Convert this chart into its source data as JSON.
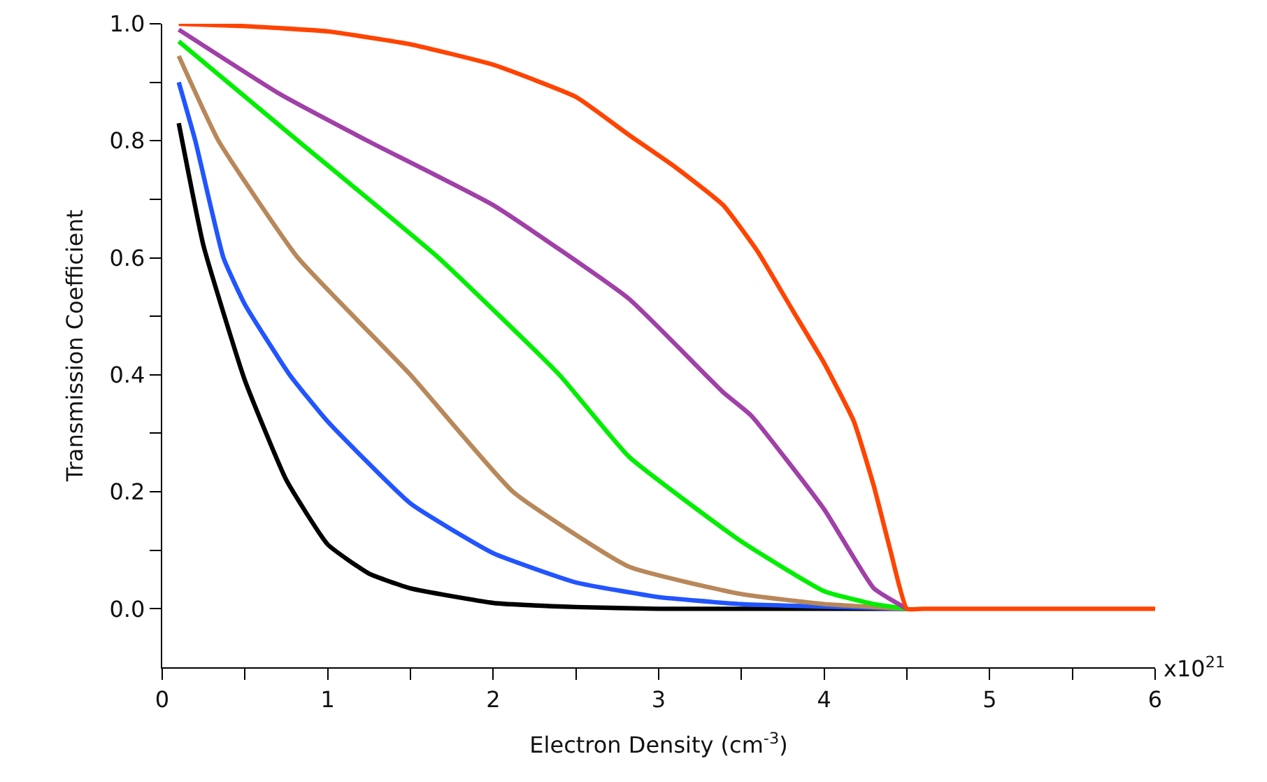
{
  "chart_data": {
    "type": "line",
    "xlabel": "Electron Density (cm$^{-3}$)",
    "ylabel": "Transmission Coefficient",
    "annotations": [
      "x10$^{21}$"
    ],
    "xlim": [
      0,
      6
    ],
    "ylim": [
      -0.1,
      1.0
    ],
    "xticks": [
      0,
      {
        "value": 0.5,
        "label": null
      },
      1,
      {
        "value": 1.5,
        "label": null
      },
      2,
      {
        "value": 2.5,
        "label": null
      },
      3,
      {
        "value": 3.5,
        "label": null
      },
      4,
      {
        "value": 4.5,
        "label": null
      },
      5,
      {
        "value": 5.5,
        "label": null
      },
      6
    ],
    "yticks": [
      {
        "value": 0,
        "label": "0.0"
      },
      {
        "value": 0.1,
        "label": null
      },
      {
        "value": 0.2,
        "label": "0.2"
      },
      {
        "value": 0.3,
        "label": null
      },
      {
        "value": 0.4,
        "label": "0.4"
      },
      {
        "value": 0.5,
        "label": null
      },
      {
        "value": 0.6,
        "label": "0.6"
      },
      {
        "value": 0.7,
        "label": null
      },
      {
        "value": 0.8,
        "label": "0.8"
      },
      {
        "value": 0.9,
        "label": null
      },
      {
        "value": 1.0,
        "label": "1.0"
      }
    ],
    "grid": false,
    "marker": "none",
    "line_style": "solid",
    "series": [
      {
        "color": "#000000",
        "x": [
          0.1,
          0.25,
          0.5,
          0.75,
          1,
          1.25,
          1.5,
          2,
          2.5,
          3,
          4.5
        ],
        "values": [
          0.83,
          0.62,
          0.39,
          0.22,
          0.11,
          0.06,
          0.035,
          0.01,
          0.003,
          0,
          0
        ]
      },
      {
        "color": "#2255ff",
        "x": [
          0.1,
          0.2,
          0.37,
          0.5,
          0.77,
          1,
          1.5,
          2,
          2.5,
          3,
          3.5,
          4.5
        ],
        "values": [
          0.9,
          0.8,
          0.6,
          0.52,
          0.4,
          0.32,
          0.18,
          0.095,
          0.045,
          0.02,
          0.008,
          0
        ]
      },
      {
        "color": "#b8885a",
        "x": [
          0.1,
          0.34,
          0.82,
          1.5,
          2.12,
          2.82,
          3.5,
          4,
          4.5
        ],
        "values": [
          0.945,
          0.8,
          0.6,
          0.4,
          0.2,
          0.072,
          0.025,
          0.008,
          0
        ]
      },
      {
        "color": "#00ee00",
        "x": [
          0.1,
          0.82,
          1.67,
          2.4,
          2.82,
          3.5,
          4,
          4.3,
          4.5
        ],
        "values": [
          0.97,
          0.8,
          0.6,
          0.4,
          0.26,
          0.115,
          0.03,
          0.008,
          0
        ]
      },
      {
        "color": "#a040a8",
        "x": [
          0.1,
          0.71,
          1.24,
          2,
          2.82,
          3.39,
          3.56,
          4,
          4.3,
          4.5
        ],
        "values": [
          0.99,
          0.88,
          0.8,
          0.69,
          0.53,
          0.37,
          0.33,
          0.17,
          0.035,
          0
        ]
      },
      {
        "color": "#ff4400",
        "x": [
          0.1,
          0.5,
          1,
          1.5,
          2,
          2.5,
          2.82,
          3.1,
          3.39,
          3.6,
          3.81,
          4,
          4.18,
          4.3,
          4.4,
          4.5,
          4.6,
          5,
          6
        ],
        "values": [
          1.0,
          0.996,
          0.987,
          0.965,
          0.93,
          0.875,
          0.81,
          0.755,
          0.69,
          0.61,
          0.51,
          0.42,
          0.32,
          0.21,
          0.1,
          0,
          0,
          0,
          0
        ]
      }
    ]
  }
}
